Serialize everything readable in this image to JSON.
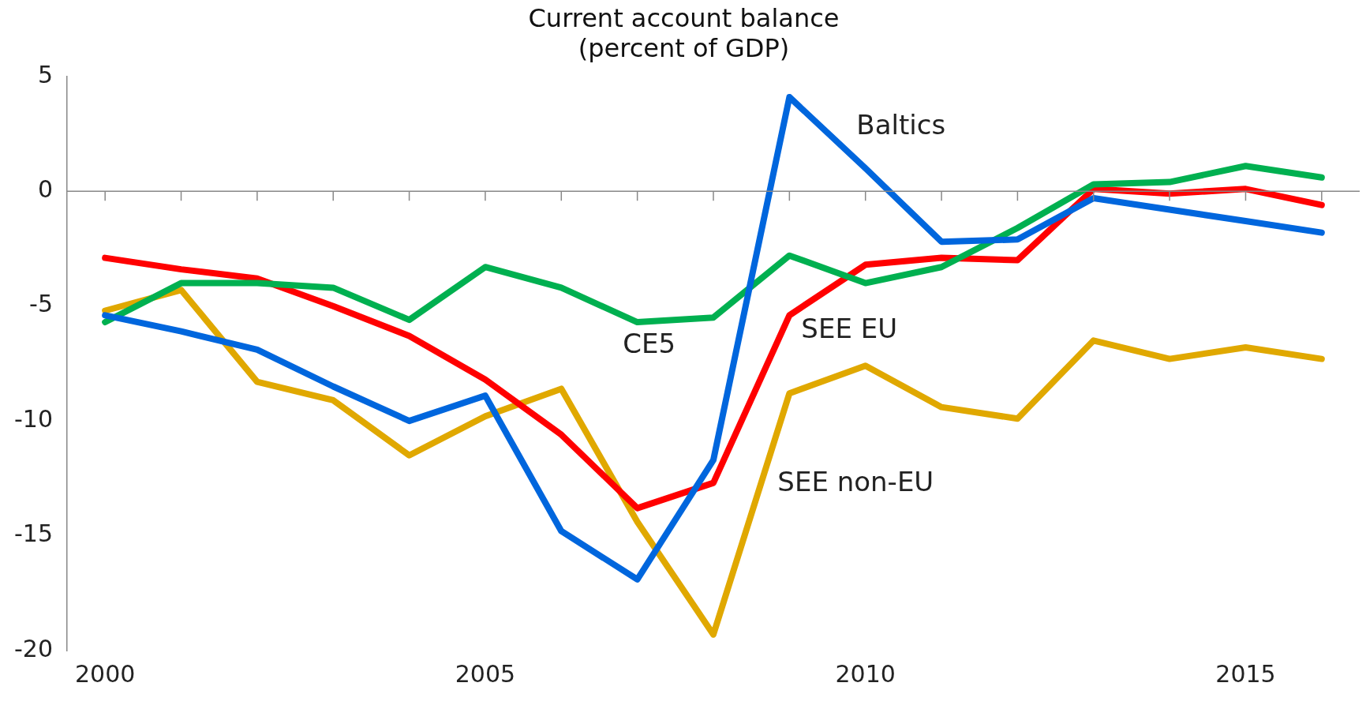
{
  "chart_data": {
    "type": "line",
    "title": "Current account balance\n(percent of GDP)",
    "x": [
      2000,
      2001,
      2002,
      2003,
      2004,
      2005,
      2006,
      2007,
      2008,
      2009,
      2010,
      2011,
      2012,
      2013,
      2014,
      2015,
      2016
    ],
    "series": [
      {
        "name": "Baltics",
        "color": "#0066dd",
        "values": [
          -5.4,
          -6.1,
          -6.9,
          -8.5,
          -10.0,
          -8.9,
          -14.8,
          -16.9,
          -11.7,
          4.1,
          1.0,
          -2.2,
          -2.1,
          -0.3,
          -0.8,
          -1.3,
          -1.8
        ]
      },
      {
        "name": "CE5",
        "color": "#00b050",
        "values": [
          -5.7,
          -4.0,
          -4.0,
          -4.2,
          -5.6,
          -3.3,
          -4.2,
          -5.7,
          -5.5,
          -2.8,
          -4.0,
          -3.3,
          -1.6,
          0.3,
          0.4,
          1.1,
          0.6
        ]
      },
      {
        "name": "SEE EU",
        "color": "#ff0000",
        "values": [
          -2.9,
          -3.4,
          -3.8,
          -5.0,
          -6.3,
          -8.2,
          -10.6,
          -13.8,
          -12.7,
          -5.4,
          -3.2,
          -2.9,
          -3.0,
          0.1,
          -0.1,
          0.1,
          -0.6
        ]
      },
      {
        "name": "SEE non-EU",
        "color": "#e0a800",
        "values": [
          -5.2,
          -4.3,
          -8.3,
          -9.1,
          -11.5,
          -9.8,
          -8.6,
          -14.4,
          -19.3,
          -8.8,
          -7.6,
          -9.4,
          -9.9,
          -6.5,
          -7.3,
          -6.8,
          -7.3
        ]
      }
    ],
    "xlim": [
      1999.5,
      2016.5
    ],
    "xticks": [
      2000,
      {
        "value": 2001,
        "label": null
      },
      {
        "value": 2002,
        "label": null
      },
      {
        "value": 2003,
        "label": null
      },
      {
        "value": 2004,
        "label": null
      },
      2005,
      {
        "value": 2006,
        "label": null
      },
      {
        "value": 2007,
        "label": null
      },
      {
        "value": 2008,
        "label": null
      },
      {
        "value": 2009,
        "label": null
      },
      2010,
      {
        "value": 2011,
        "label": null
      },
      {
        "value": 2012,
        "label": null
      },
      {
        "value": 2013,
        "label": null
      },
      {
        "value": 2014,
        "label": null
      },
      2015,
      {
        "value": 2016,
        "label": null
      }
    ],
    "ylim": [
      -20,
      5
    ],
    "yticks": [
      -20,
      -15,
      -10,
      -5,
      0,
      5
    ],
    "ref_lines": [
      {
        "axis": "y",
        "value": 0
      }
    ],
    "grid": false,
    "legend": false,
    "marker": "none",
    "line_style": "solid"
  }
}
